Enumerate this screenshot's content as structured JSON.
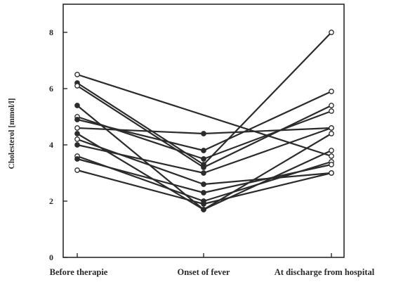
{
  "chart_data": {
    "type": "line",
    "ylabel": "Cholesterol [mmol/l]",
    "xlabel": "",
    "categories": [
      "Before therapie",
      "Onset of fever",
      "At discharge from hospital"
    ],
    "ylim": [
      0,
      9
    ],
    "yticks": [
      0,
      2,
      4,
      6,
      8
    ],
    "grid": false,
    "marker_style_filled": "filled",
    "marker_style_open": "open",
    "series": [
      {
        "values": [
          6.5,
          null,
          3.6
        ],
        "marker": "open"
      },
      {
        "values": [
          6.2,
          3.3,
          8.0
        ],
        "marker": "open"
      },
      {
        "values": [
          6.1,
          3.2,
          5.4
        ],
        "marker": "open"
      },
      {
        "values": [
          5.4,
          1.7,
          4.4
        ],
        "marker": "open"
      },
      {
        "values": [
          5.0,
          3.5,
          5.2
        ],
        "marker": "open"
      },
      {
        "values": [
          4.9,
          3.8,
          5.9
        ],
        "marker": "open"
      },
      {
        "values": [
          4.6,
          4.4,
          4.6
        ],
        "marker": "open"
      },
      {
        "values": [
          4.4,
          1.7,
          3.8
        ],
        "marker": "open"
      },
      {
        "values": [
          4.2,
          2.6,
          3.0
        ],
        "marker": "open"
      },
      {
        "values": [
          4.0,
          3.0,
          4.6
        ],
        "marker": "open"
      },
      {
        "values": [
          3.6,
          2.0,
          3.4
        ],
        "marker": "open"
      },
      {
        "values": [
          3.5,
          2.3,
          3.3
        ],
        "marker": "open"
      },
      {
        "values": [
          3.1,
          1.9,
          3.0
        ],
        "marker": "open"
      }
    ]
  }
}
